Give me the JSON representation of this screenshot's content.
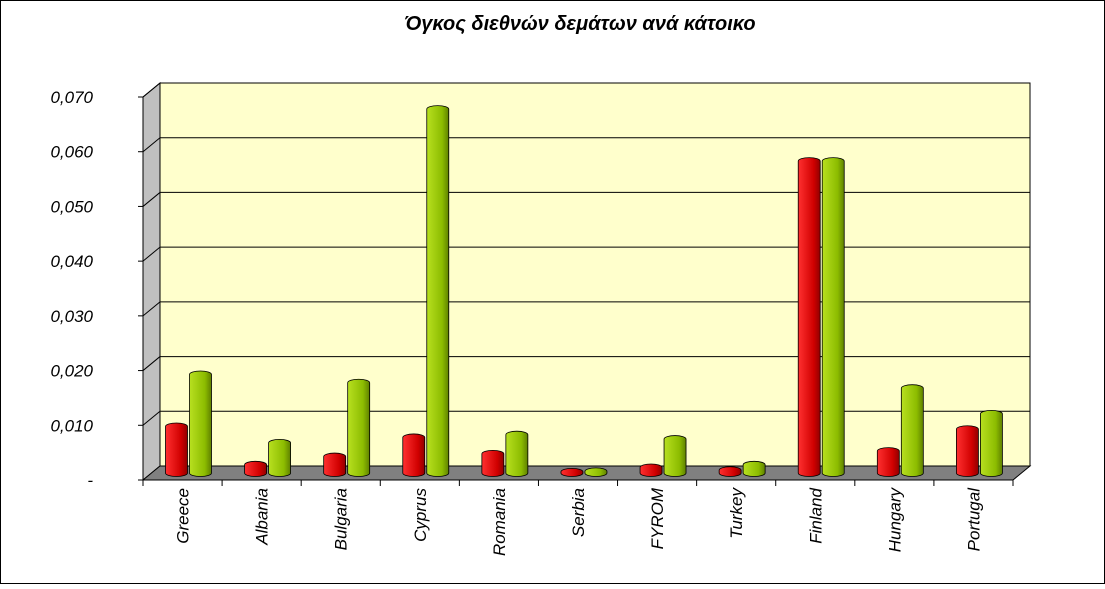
{
  "chart_data": {
    "type": "bar",
    "title": "Όγκος διεθνών δεμάτων ανά κάτοικο",
    "categories": [
      "Greece",
      "Albania",
      "Bulgaria",
      "Cyprus",
      "Romania",
      "Serbia",
      "FYROM",
      "Turkey",
      "Finland",
      "Hungary",
      "Portugal"
    ],
    "series": [
      {
        "color": "#e00000",
        "values": [
          0.0085,
          0.0015,
          0.003,
          0.0065,
          0.0035,
          0.0002,
          0.001,
          0.0005,
          0.057,
          0.004,
          0.008
        ]
      },
      {
        "color": "#99cc00",
        "values": [
          0.018,
          0.0055,
          0.0165,
          0.0665,
          0.007,
          0.0003,
          0.0062,
          0.0015,
          0.057,
          0.0155,
          0.0108
        ]
      }
    ],
    "ylim": [
      0,
      0.07
    ],
    "yticks": [
      {
        "value": 0,
        "label": "-"
      },
      {
        "value": 0.01,
        "label": "0,010"
      },
      {
        "value": 0.02,
        "label": "0,020"
      },
      {
        "value": 0.03,
        "label": "0,030"
      },
      {
        "value": 0.04,
        "label": "0,040"
      },
      {
        "value": 0.05,
        "label": "0,050"
      },
      {
        "value": 0.06,
        "label": "0,060"
      },
      {
        "value": 0.07,
        "label": "0,070"
      }
    ],
    "grid": true
  }
}
